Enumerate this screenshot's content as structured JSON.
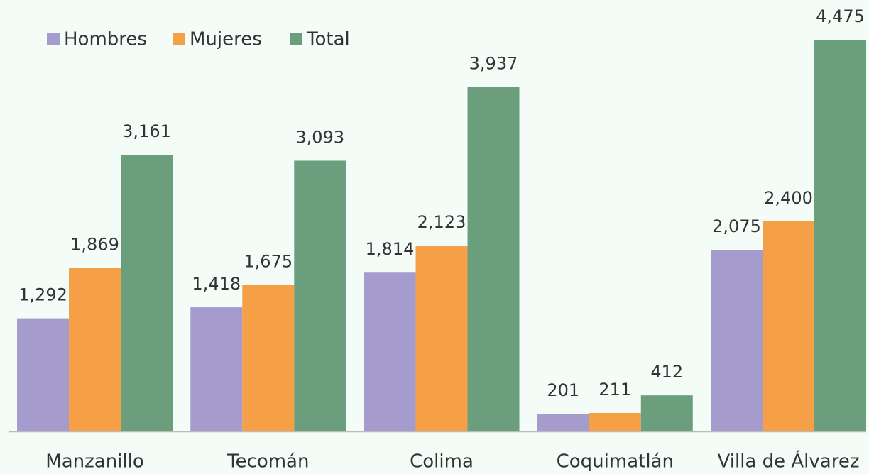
{
  "chart_data": {
    "type": "bar",
    "categories": [
      "Manzanillo",
      "Tecomán",
      "Colima",
      "Coquimatlán",
      "Villa de Álvarez"
    ],
    "series": [
      {
        "name": "Hombres",
        "color": "#a59bcd",
        "values": [
          1292,
          1418,
          1814,
          201,
          2075
        ],
        "value_labels": [
          "1,292",
          "1,418",
          "1,814",
          "201",
          "2,075"
        ]
      },
      {
        "name": "Mujeres",
        "color": "#f59f47",
        "values": [
          1869,
          1675,
          2123,
          211,
          2400
        ],
        "value_labels": [
          "1,869",
          "1,675",
          "2,123",
          "211",
          "2,400"
        ]
      },
      {
        "name": "Total",
        "color": "#6b9e7c",
        "values": [
          3161,
          3093,
          3937,
          412,
          4475
        ],
        "value_labels": [
          "3,161",
          "3,093",
          "3,937",
          "412",
          "4,475"
        ]
      }
    ],
    "ylim": [
      0,
      5000
    ],
    "legend": "top-left"
  }
}
